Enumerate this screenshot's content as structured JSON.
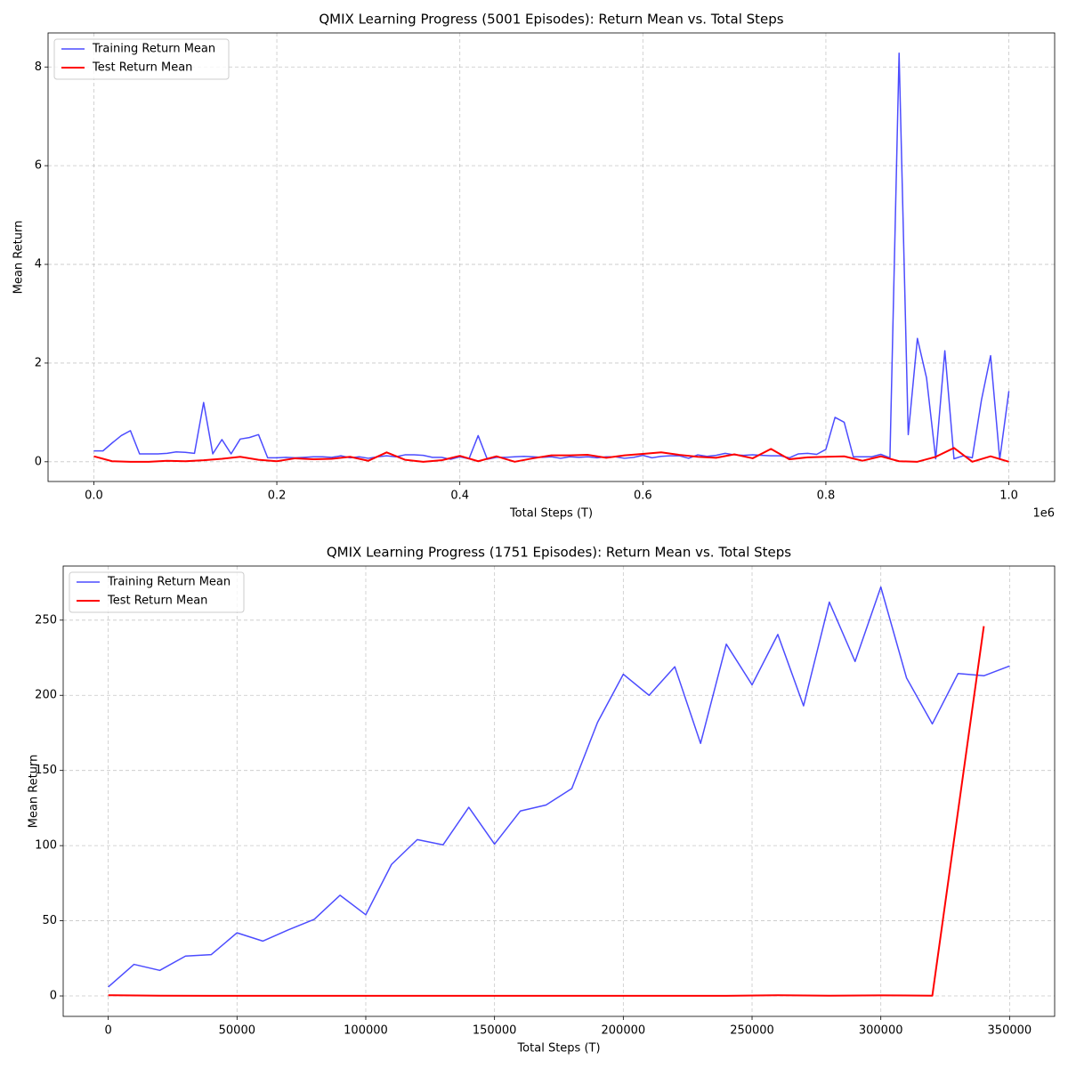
{
  "chart_data": [
    {
      "type": "line",
      "title": "QMIX Learning Progress (5001 Episodes): Return Mean vs. Total Steps",
      "xlabel": "Total Steps (T)",
      "ylabel": "Mean Return",
      "x_offset_label": "1e6",
      "xlim": [
        -50000,
        1050000
      ],
      "ylim": [
        -0.4,
        8.69
      ],
      "xticks": [
        {
          "value": 0,
          "label": "0.0"
        },
        {
          "value": 200000,
          "label": "0.2"
        },
        {
          "value": 400000,
          "label": "0.4"
        },
        {
          "value": 600000,
          "label": "0.6"
        },
        {
          "value": 800000,
          "label": "0.8"
        },
        {
          "value": 1000000,
          "label": "1.0"
        }
      ],
      "yticks": [
        0,
        2,
        4,
        6,
        8
      ],
      "grid": true,
      "legend": "upper left",
      "series": [
        {
          "name": "Training Return Mean",
          "color": "#0000ff",
          "opacity": 0.7,
          "width": 1.5,
          "x": [
            0,
            10000,
            20000,
            30000,
            40000,
            50000,
            60000,
            70000,
            80000,
            90000,
            100000,
            110000,
            120000,
            130000,
            140000,
            150000,
            160000,
            170000,
            180000,
            190000,
            200000,
            210000,
            220000,
            230000,
            240000,
            250000,
            260000,
            270000,
            280000,
            290000,
            300000,
            310000,
            320000,
            330000,
            340000,
            350000,
            360000,
            370000,
            380000,
            390000,
            400000,
            410000,
            420000,
            430000,
            440000,
            450000,
            460000,
            470000,
            480000,
            490000,
            500000,
            510000,
            520000,
            530000,
            540000,
            550000,
            560000,
            570000,
            580000,
            590000,
            600000,
            610000,
            620000,
            630000,
            640000,
            650000,
            660000,
            670000,
            680000,
            690000,
            700000,
            710000,
            720000,
            730000,
            740000,
            750000,
            760000,
            770000,
            780000,
            790000,
            800000,
            810000,
            820000,
            830000,
            840000,
            850000,
            860000,
            870000,
            880000,
            890000,
            900000,
            910000,
            920000,
            930000,
            940000,
            950000,
            960000,
            970000,
            980000,
            990000,
            1000000
          ],
          "values": [
            0.22,
            0.22,
            0.38,
            0.53,
            0.63,
            0.16,
            0.16,
            0.16,
            0.17,
            0.2,
            0.19,
            0.17,
            1.2,
            0.16,
            0.45,
            0.16,
            0.46,
            0.49,
            0.55,
            0.08,
            0.08,
            0.09,
            0.08,
            0.09,
            0.1,
            0.1,
            0.09,
            0.12,
            0.08,
            0.1,
            0.07,
            0.1,
            0.12,
            0.1,
            0.14,
            0.14,
            0.13,
            0.09,
            0.09,
            0.05,
            0.1,
            0.06,
            0.53,
            0.05,
            0.09,
            0.09,
            0.1,
            0.11,
            0.1,
            0.09,
            0.1,
            0.07,
            0.1,
            0.09,
            0.1,
            0.08,
            0.1,
            0.1,
            0.07,
            0.09,
            0.13,
            0.08,
            0.11,
            0.12,
            0.12,
            0.07,
            0.14,
            0.11,
            0.13,
            0.17,
            0.14,
            0.13,
            0.14,
            0.13,
            0.12,
            0.12,
            0.08,
            0.16,
            0.17,
            0.15,
            0.25,
            0.9,
            0.8,
            0.1,
            0.1,
            0.1,
            0.15,
            0.08,
            8.28,
            0.55,
            2.5,
            1.7,
            0.06,
            2.25,
            0.06,
            0.12,
            0.08,
            1.25,
            2.15,
            0.05,
            1.43
          ]
        },
        {
          "name": "Test Return Mean",
          "color": "#ff0000",
          "opacity": 1,
          "width": 2,
          "x": [
            0,
            20000,
            40000,
            60000,
            80000,
            100000,
            120000,
            140000,
            160000,
            180000,
            200000,
            220000,
            240000,
            260000,
            280000,
            300000,
            320000,
            340000,
            360000,
            380000,
            400000,
            420000,
            440000,
            460000,
            480000,
            500000,
            520000,
            540000,
            560000,
            580000,
            600000,
            620000,
            640000,
            660000,
            680000,
            700000,
            720000,
            740000,
            760000,
            780000,
            800000,
            820000,
            840000,
            860000,
            880000,
            900000,
            920000,
            940000,
            960000,
            980000,
            1000000
          ],
          "values": [
            0.11,
            0.01,
            0.0,
            0.0,
            0.02,
            0.01,
            0.03,
            0.06,
            0.1,
            0.04,
            0.01,
            0.07,
            0.05,
            0.06,
            0.1,
            0.02,
            0.19,
            0.04,
            0.0,
            0.03,
            0.12,
            0.01,
            0.11,
            0.0,
            0.07,
            0.13,
            0.13,
            0.14,
            0.08,
            0.13,
            0.16,
            0.19,
            0.14,
            0.1,
            0.08,
            0.15,
            0.07,
            0.26,
            0.05,
            0.09,
            0.1,
            0.11,
            0.02,
            0.11,
            0.01,
            0.0,
            0.1,
            0.28,
            0.0,
            0.11,
            0.0
          ]
        }
      ]
    },
    {
      "type": "line",
      "title": "QMIX Learning Progress (1751 Episodes): Return Mean vs. Total Steps",
      "xlabel": "Total Steps (T)",
      "ylabel": "Mean Return",
      "xlim": [
        -17500,
        367500
      ],
      "ylim": [
        -13.6,
        286
      ],
      "xticks": [
        0,
        50000,
        100000,
        150000,
        200000,
        250000,
        300000,
        350000
      ],
      "yticks": [
        0,
        50,
        100,
        150,
        200,
        250
      ],
      "grid": true,
      "legend": "upper left",
      "series": [
        {
          "name": "Training Return Mean",
          "color": "#0000ff",
          "opacity": 0.7,
          "width": 1.5,
          "x": [
            0,
            10000,
            20000,
            30000,
            40000,
            50000,
            60000,
            70000,
            80000,
            90000,
            100000,
            110000,
            120000,
            130000,
            140000,
            150000,
            160000,
            170000,
            180000,
            190000,
            200000,
            210000,
            220000,
            230000,
            240000,
            250000,
            260000,
            270000,
            280000,
            290000,
            300000,
            310000,
            320000,
            330000,
            340000,
            350000
          ],
          "values": [
            6,
            21,
            17,
            26.5,
            27.5,
            42,
            36.5,
            44,
            51,
            67,
            54,
            87.5,
            104,
            100.5,
            125.5,
            101,
            123,
            127,
            138,
            182,
            214,
            200,
            219,
            168,
            234,
            207,
            240.5,
            193,
            262,
            222.5,
            272,
            211.5,
            181,
            214.5,
            213,
            219.5
          ]
        },
        {
          "name": "Test Return Mean",
          "color": "#ff0000",
          "opacity": 1,
          "width": 2,
          "x": [
            0,
            20000,
            40000,
            60000,
            80000,
            100000,
            120000,
            140000,
            160000,
            180000,
            200000,
            220000,
            240000,
            260000,
            280000,
            300000,
            320000,
            340000
          ],
          "values": [
            0.5,
            0.2,
            0.1,
            0.1,
            0.1,
            0.1,
            0.1,
            0.1,
            0.1,
            0.1,
            0.1,
            0.1,
            0.1,
            0.5,
            0.2,
            0.4,
            0.2,
            246
          ]
        }
      ]
    }
  ]
}
